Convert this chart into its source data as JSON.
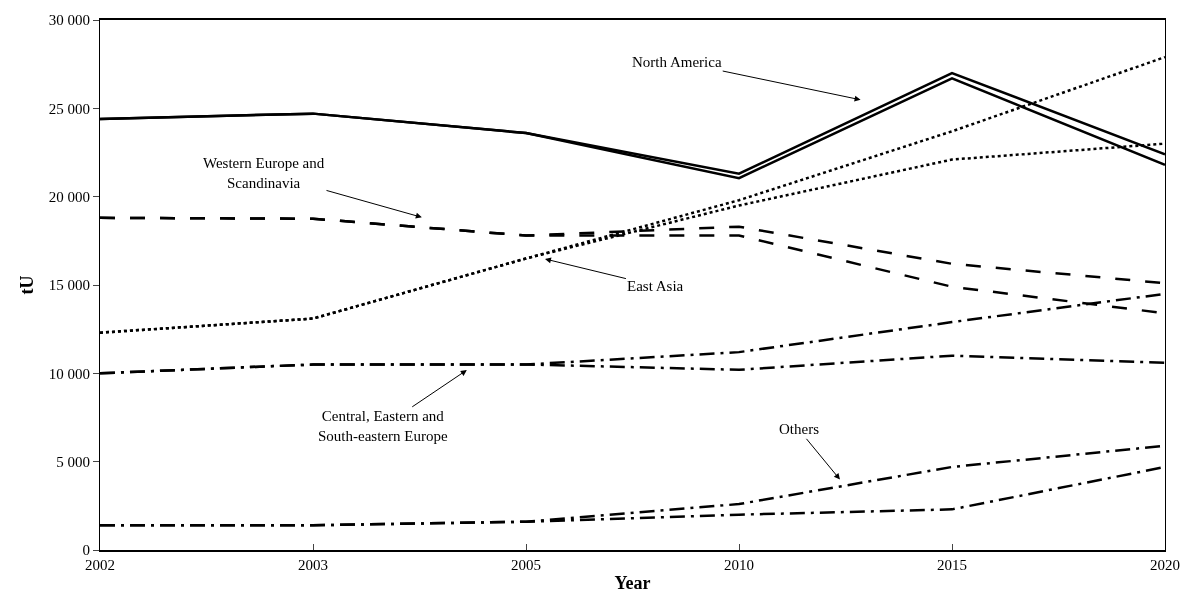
{
  "chart_data": {
    "type": "line",
    "xlabel": "Year",
    "ylabel": "tU",
    "categories": [
      "2002",
      "2003",
      "2005",
      "2010",
      "2015",
      "2020"
    ],
    "ylim": [
      0,
      30000
    ],
    "yticks": [
      {
        "value": 0,
        "label": "0"
      },
      {
        "value": 5000,
        "label": "5 000"
      },
      {
        "value": 10000,
        "label": "10 000"
      },
      {
        "value": 15000,
        "label": "15 000"
      },
      {
        "value": 20000,
        "label": "20 000"
      },
      {
        "value": 25000,
        "label": "25 000"
      },
      {
        "value": 30000,
        "label": "30 000"
      }
    ],
    "marker": "none",
    "series": [
      {
        "name": "North America",
        "color": "#000000",
        "line_style": "solid",
        "values": [
          24400,
          24700,
          23600,
          21300,
          27000,
          22400
        ]
      },
      {
        "color": "#000000",
        "line_style": "solid",
        "values": [
          24400,
          24700,
          23600,
          21050,
          26700,
          21800
        ]
      },
      {
        "name": "Western Europe and Scandinavia",
        "color": "#000000",
        "line_style": "dashed",
        "values": [
          18800,
          18750,
          17800,
          18300,
          16200,
          15100
        ]
      },
      {
        "color": "#000000",
        "line_style": "dashed",
        "values": [
          18800,
          18750,
          17800,
          17800,
          14900,
          13400
        ]
      },
      {
        "name": "East Asia",
        "color": "#000000",
        "line_style": "dotted",
        "values": [
          12300,
          13100,
          16500,
          19800,
          23700,
          27900
        ]
      },
      {
        "color": "#000000",
        "line_style": "dotted",
        "values": [
          12300,
          13100,
          16500,
          19500,
          22100,
          23000
        ]
      },
      {
        "name": "Central, Eastern and South-eastern Europe",
        "color": "#000000",
        "line_style": "dashdot",
        "values": [
          10000,
          10500,
          10500,
          11200,
          12900,
          14500
        ]
      },
      {
        "color": "#000000",
        "line_style": "dashdot",
        "values": [
          10000,
          10500,
          10500,
          10200,
          11000,
          10600
        ]
      },
      {
        "name": "Others",
        "color": "#000000",
        "line_style": "dashdot",
        "values": [
          1400,
          1400,
          1600,
          2600,
          4700,
          5900
        ]
      },
      {
        "color": "#000000",
        "line_style": "dashdot",
        "values": [
          1400,
          1400,
          1600,
          2000,
          2300,
          4700
        ]
      }
    ]
  }
}
